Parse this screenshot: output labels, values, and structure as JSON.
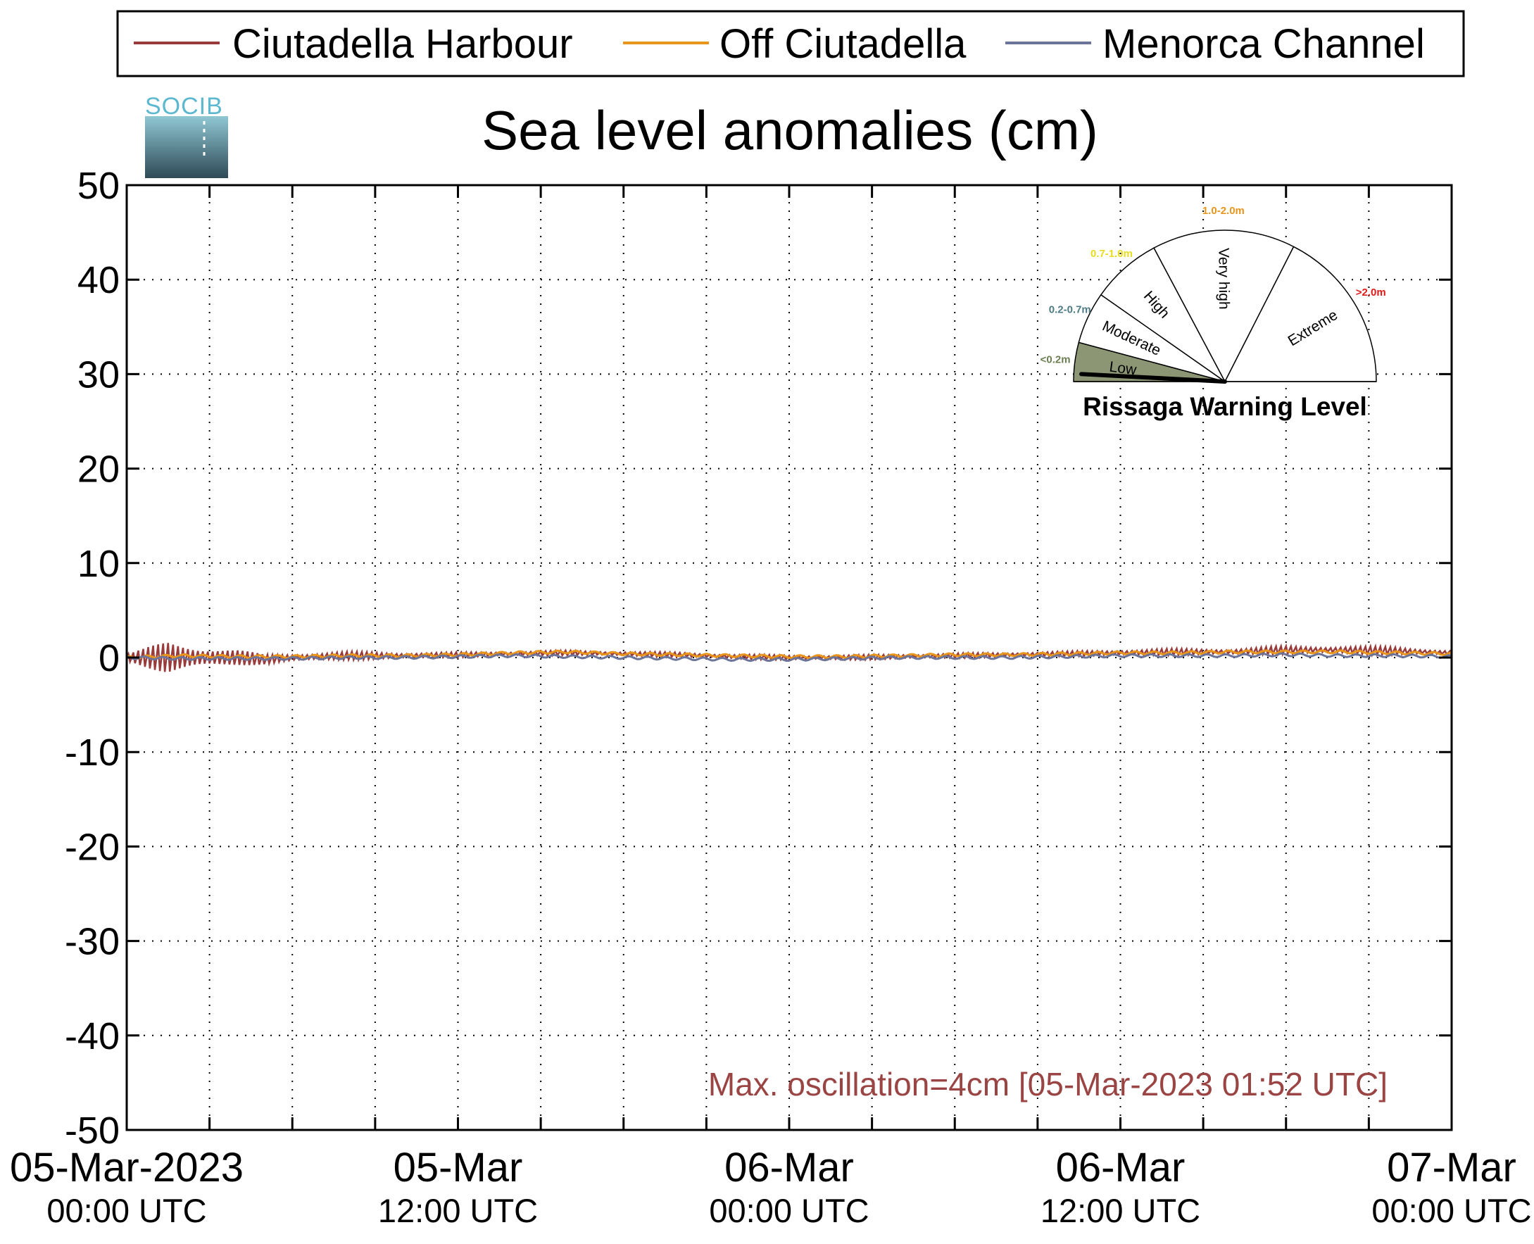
{
  "legend": {
    "items": [
      {
        "label": "Ciutadella Harbour",
        "color": "#9a3b3b"
      },
      {
        "label": "Off Ciutadella",
        "color": "#e8951c"
      },
      {
        "label": "Menorca Channel",
        "color": "#6c7599"
      }
    ]
  },
  "logo": {
    "text": "SOCIB"
  },
  "chart_data": {
    "type": "line",
    "title": "Sea level anomalies (cm)",
    "xlabel": "",
    "ylabel": "",
    "ylim": [
      -50,
      50
    ],
    "yticks": [
      50,
      40,
      30,
      20,
      10,
      0,
      -10,
      -20,
      -30,
      -40,
      -50
    ],
    "xlim_hours": [
      0,
      48
    ],
    "x_ticks": [
      {
        "line1": "05-Mar-2023",
        "line2": "00:00 UTC"
      },
      {
        "line1": "05-Mar",
        "line2": "12:00 UTC"
      },
      {
        "line1": "06-Mar",
        "line2": "00:00 UTC"
      },
      {
        "line1": "06-Mar",
        "line2": "12:00 UTC"
      },
      {
        "line1": "07-Mar",
        "line2": "00:00 UTC"
      }
    ],
    "grid": true,
    "series": [
      {
        "name": "Ciutadella Harbour",
        "color": "#9a3b3b",
        "x_hours": [
          0,
          1,
          1.5,
          2,
          3,
          4,
          5,
          6,
          8,
          10,
          12,
          14,
          16,
          18,
          20,
          22,
          24,
          26,
          28,
          30,
          32,
          34,
          36,
          38,
          40,
          42,
          44,
          46,
          48
        ],
        "baseline": [
          0,
          0,
          0,
          0,
          0,
          0,
          -0.2,
          0,
          0.2,
          0.2,
          0.3,
          0.4,
          0.5,
          0.4,
          0.3,
          0.1,
          0.0,
          0.0,
          0.1,
          0.2,
          0.3,
          0.4,
          0.5,
          0.6,
          0.6,
          0.8,
          0.8,
          0.7,
          0.5
        ],
        "oscillation_amplitude": [
          0.5,
          1.5,
          2.0,
          1.8,
          1.4,
          1.0,
          0.6,
          0.5,
          0.5,
          0.4,
          0.3,
          0.3,
          0.3,
          0.3,
          0.3,
          0.3,
          0.3,
          0.3,
          0.3,
          0.3,
          0.3,
          0.3,
          0.4,
          0.4,
          0.4,
          0.5,
          0.5,
          0.5,
          0.3
        ]
      },
      {
        "name": "Off Ciutadella",
        "color": "#e8951c",
        "x_hours": [
          0,
          2,
          4,
          6,
          8,
          10,
          12,
          14,
          16,
          18,
          20,
          22,
          24,
          26,
          28,
          30,
          32,
          34,
          36,
          38,
          40,
          42,
          44,
          46,
          48
        ],
        "values": [
          0,
          0.2,
          0.1,
          0.1,
          0.2,
          0.2,
          0.3,
          0.5,
          0.6,
          0.4,
          0.3,
          0.2,
          0.1,
          0.1,
          0.2,
          0.3,
          0.3,
          0.4,
          0.5,
          0.5,
          0.6,
          0.6,
          0.6,
          0.5,
          0.4
        ]
      },
      {
        "name": "Menorca Channel",
        "color": "#6c7599",
        "x_hours": [
          0,
          2,
          4,
          6,
          8,
          10,
          12,
          14,
          16,
          18,
          20,
          22,
          24,
          26,
          28,
          30,
          32,
          34,
          36,
          38,
          40,
          42,
          44,
          46,
          48
        ],
        "values": [
          0,
          -0.1,
          -0.1,
          -0.1,
          0,
          0,
          0.1,
          0.2,
          0.1,
          0,
          -0.1,
          -0.2,
          -0.2,
          -0.1,
          0,
          0,
          0,
          0.1,
          0.2,
          0.2,
          0.2,
          0.3,
          0.2,
          0.2,
          0.1
        ]
      }
    ],
    "annotation": "Max. oscillation=4cm [05-Mar-2023 01:52 UTC]"
  },
  "gauge": {
    "title": "Rissaga Warning Level",
    "segments": [
      {
        "label": "Low",
        "range": "<0.2m",
        "range_color": "#6b7f52",
        "active": true,
        "fill": "#8c9675"
      },
      {
        "label": "Moderate",
        "range": "0.2-0.7m",
        "range_color": "#4f7b84",
        "active": false,
        "fill": "#ffffff"
      },
      {
        "label": "High",
        "range": "0.7-1.0m",
        "range_color": "#e8dc1e",
        "active": false,
        "fill": "#ffffff"
      },
      {
        "label": "Very high",
        "range": "1.0-2.0m",
        "range_color": "#e8951c",
        "active": false,
        "fill": "#ffffff"
      },
      {
        "label": "Extreme",
        "range": ">2.0m",
        "range_color": "#e01a1a",
        "active": false,
        "fill": "#ffffff"
      }
    ],
    "needle_value_m": 0.04
  }
}
